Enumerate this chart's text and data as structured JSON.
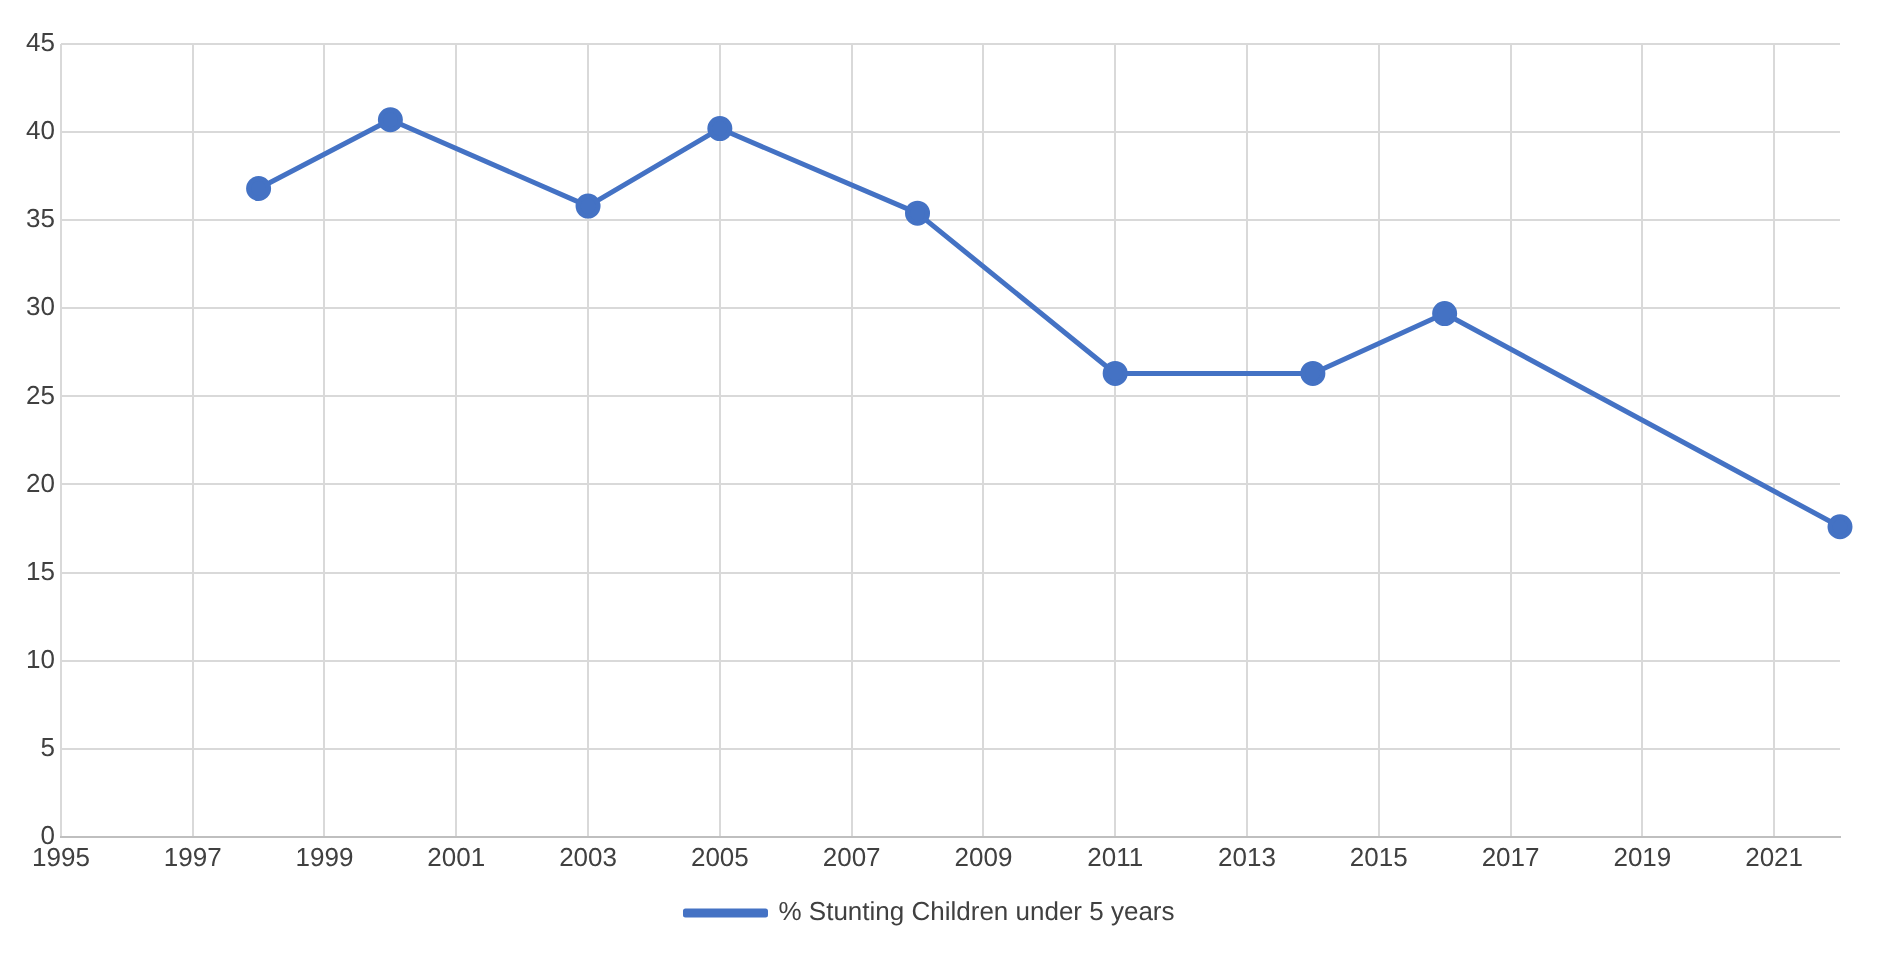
{
  "chart_data": {
    "type": "line",
    "x": [
      1998,
      2000,
      2003,
      2005,
      2008,
      2011,
      2014,
      2016,
      2022
    ],
    "series": [
      {
        "name": "% Stunting Children under 5 years",
        "color": "#4472c4",
        "values": [
          36.8,
          40.7,
          35.8,
          40.2,
          35.4,
          26.3,
          26.3,
          29.7,
          17.6
        ]
      }
    ],
    "xlim": [
      1995,
      2022
    ],
    "xticks": [
      1995,
      1997,
      1999,
      2001,
      2003,
      2005,
      2007,
      2009,
      2011,
      2013,
      2015,
      2017,
      2019,
      2021
    ],
    "ylim": [
      0,
      45
    ],
    "yticks": [
      0,
      5,
      10,
      15,
      20,
      25,
      30,
      35,
      40,
      45
    ],
    "grid": true,
    "legend": "bottom",
    "marker": "circle",
    "line_style": "solid"
  }
}
